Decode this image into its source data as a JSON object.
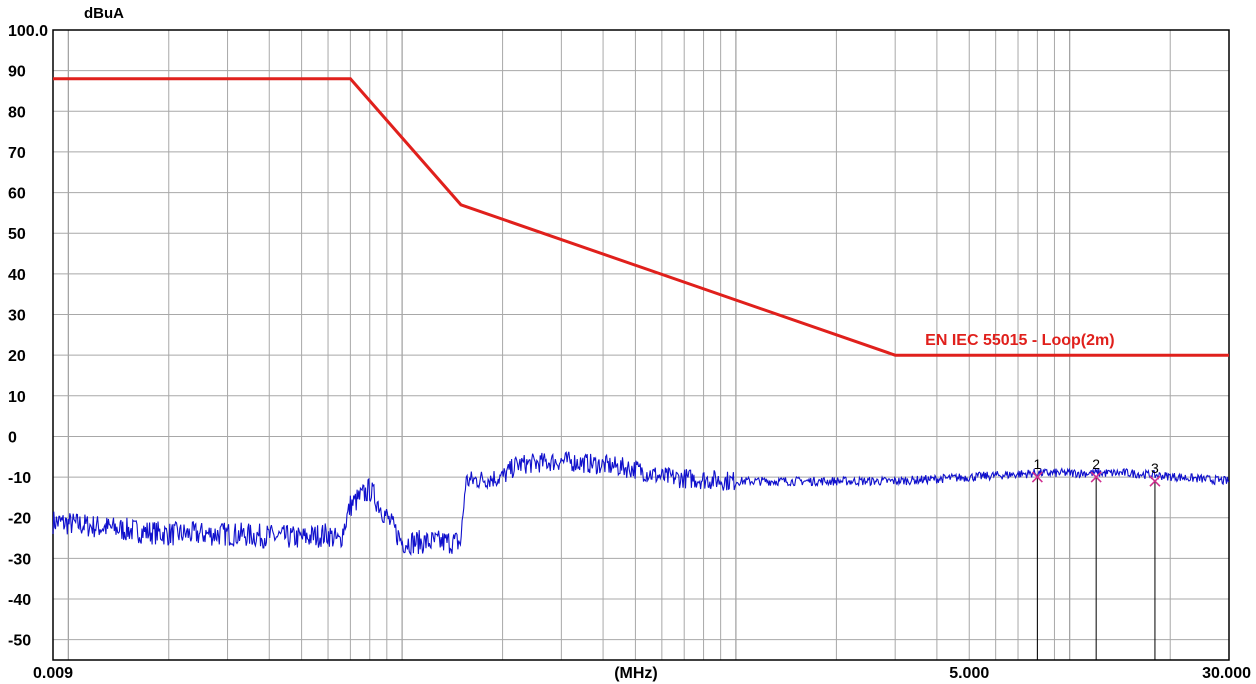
{
  "chart_data": {
    "type": "line",
    "y_unit": "dBuA",
    "x_unit": "(MHz)",
    "xlim": [
      0.009,
      30.0
    ],
    "ylim": [
      -55,
      100
    ],
    "x_scale": "log",
    "grid": true,
    "y_ticks": [
      "100.0",
      "90",
      "80",
      "70",
      "60",
      "50",
      "40",
      "30",
      "20",
      "10",
      "0",
      "-10",
      "-20",
      "-30",
      "-40",
      "-50"
    ],
    "x_tick_labels": [
      {
        "x": 0.009,
        "label": "0.009"
      },
      {
        "x": 5.0,
        "label": "5.000"
      },
      {
        "x": 30.0,
        "label": "30.000"
      }
    ],
    "limit": {
      "name": "EN IEC 55015 - Loop(2m)",
      "color": "#e0201c",
      "points": [
        [
          0.009,
          88
        ],
        [
          0.07,
          88
        ],
        [
          0.15,
          57
        ],
        [
          3.0,
          20
        ],
        [
          30.0,
          20
        ]
      ]
    },
    "measurement": {
      "color": "#1010cc",
      "points": [
        [
          0.009,
          -21
        ],
        [
          0.015,
          -23
        ],
        [
          0.02,
          -24
        ],
        [
          0.03,
          -24
        ],
        [
          0.05,
          -25
        ],
        [
          0.06,
          -24
        ],
        [
          0.065,
          -26
        ],
        [
          0.07,
          -17
        ],
        [
          0.08,
          -13
        ],
        [
          0.1,
          -26
        ],
        [
          0.12,
          -26
        ],
        [
          0.15,
          -26
        ],
        [
          0.155,
          -11
        ],
        [
          0.2,
          -10
        ],
        [
          0.22,
          -7
        ],
        [
          0.3,
          -6
        ],
        [
          0.4,
          -7
        ],
        [
          0.5,
          -8
        ],
        [
          0.6,
          -10
        ],
        [
          1.0,
          -11
        ],
        [
          2.0,
          -11
        ],
        [
          3.0,
          -11
        ],
        [
          5.0,
          -10
        ],
        [
          8.0,
          -9
        ],
        [
          15.0,
          -9
        ],
        [
          30.0,
          -11
        ]
      ]
    },
    "markers": [
      {
        "label": "1",
        "x": 8.0,
        "y": -10
      },
      {
        "label": "2",
        "x": 12.0,
        "y": -10
      },
      {
        "label": "3",
        "x": 18.0,
        "y": -11
      }
    ]
  }
}
